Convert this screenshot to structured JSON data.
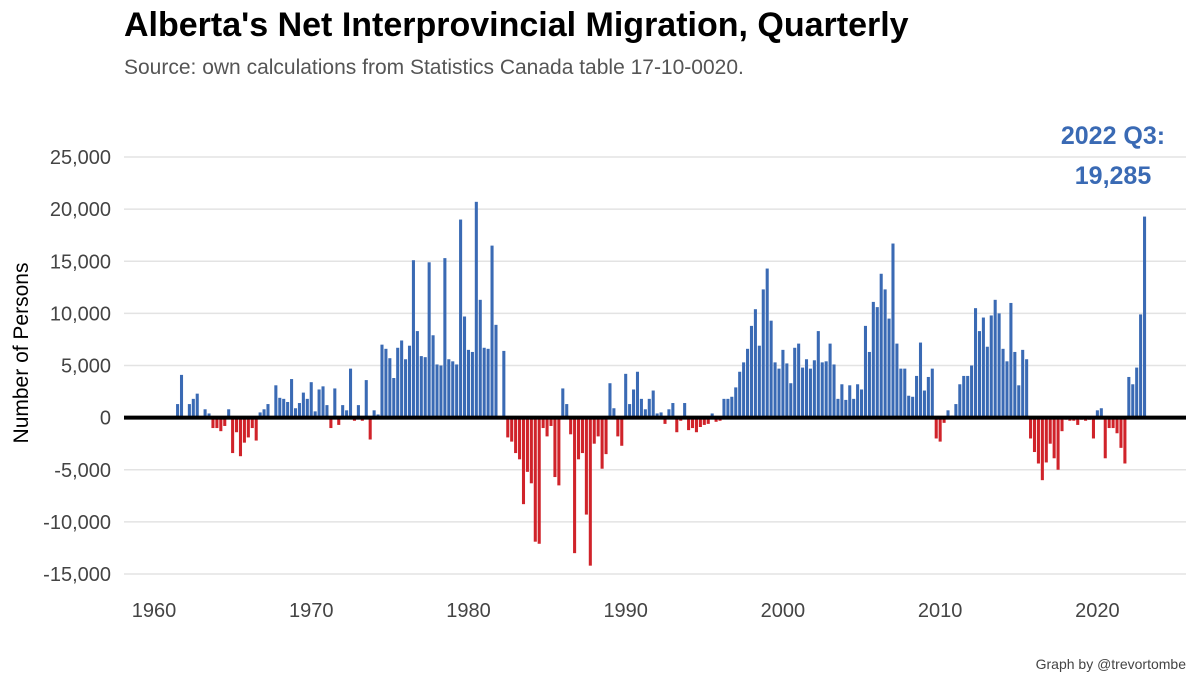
{
  "title": "Alberta's Net Interprovincial Migration, Quarterly",
  "subtitle": "Source: own calculations from Statistics Canada table 17-10-0020.",
  "caption": "Graph by @trevortombe",
  "chart_data": {
    "type": "bar",
    "title": "Alberta's Net Interprovincial Migration, Quarterly",
    "xlabel": "",
    "ylabel": "Number of Persons",
    "xlim": [
      1960,
      2025
    ],
    "ylim": [
      -15000,
      25000
    ],
    "xticks": [
      1960,
      1970,
      1980,
      1990,
      2000,
      2010,
      2020
    ],
    "yticks": [
      -15000,
      -10000,
      -5000,
      0,
      5000,
      10000,
      15000,
      20000,
      25000
    ],
    "ytick_labels": [
      "-15,000",
      "-10,000",
      "-5,000",
      "0",
      "5,000",
      "10,000",
      "15,000",
      "20,000",
      "25,000"
    ],
    "positive_color": "#3a6ab4",
    "negative_color": "#d0232a",
    "grid": "horizontal",
    "start": "1961 Q3",
    "annotation": {
      "line1": "2022 Q3:",
      "line2": "19,285",
      "color": "#3a6ab4"
    },
    "values": [
      1300,
      4100,
      0,
      1300,
      1800,
      2300,
      0,
      800,
      400,
      -1000,
      -1000,
      -1300,
      -800,
      800,
      -3400,
      -1400,
      -3700,
      -2400,
      -1900,
      -1000,
      -2200,
      500,
      800,
      1300,
      0,
      3100,
      1900,
      1800,
      1500,
      3700,
      900,
      1400,
      2400,
      1800,
      3400,
      600,
      2700,
      3000,
      1200,
      -1000,
      2800,
      -700,
      1200,
      700,
      4700,
      -300,
      1200,
      -300,
      3600,
      -2100,
      700,
      300,
      7000,
      6600,
      5700,
      3800,
      6700,
      7400,
      5600,
      6900,
      15100,
      8300,
      5900,
      5800,
      14900,
      7900,
      5100,
      5000,
      15300,
      5600,
      5400,
      5100,
      19000,
      9700,
      6500,
      6300,
      20700,
      11300,
      6700,
      6600,
      16500,
      8900,
      0,
      6400,
      -1900,
      -2300,
      -3400,
      -4000,
      -8300,
      -5200,
      -6300,
      -11900,
      -12100,
      -1000,
      -1800,
      -800,
      -5700,
      -6500,
      2800,
      1300,
      -1600,
      -13000,
      -4000,
      -3400,
      -9300,
      -14200,
      -2500,
      -1800,
      -4900,
      -3500,
      3300,
      900,
      -1800,
      -2700,
      4200,
      1300,
      2700,
      4400,
      1800,
      800,
      1800,
      2600,
      400,
      500,
      -600,
      800,
      1400,
      -1400,
      -300,
      1400,
      -1200,
      -1000,
      -1400,
      -900,
      -700,
      -600,
      400,
      -400,
      -300,
      1800,
      1800,
      2000,
      2900,
      4400,
      5300,
      6600,
      8800,
      10400,
      6900,
      12300,
      14300,
      9300,
      5300,
      4700,
      6500,
      5200,
      3300,
      6700,
      7100,
      4800,
      5600,
      4700,
      5500,
      8300,
      5300,
      5400,
      7100,
      5100,
      1800,
      3200,
      1700,
      3100,
      1800,
      3200,
      2700,
      8800,
      6300,
      11100,
      10600,
      13800,
      12300,
      9500,
      16700,
      7100,
      4700,
      4700,
      2100,
      2000,
      4000,
      7200,
      2600,
      3900,
      4700,
      -2000,
      -2300,
      -500,
      700,
      200,
      1300,
      3200,
      4000,
      4000,
      5000,
      10500,
      8300,
      9600,
      6800,
      9800,
      11300,
      10000,
      6600,
      5400,
      11000,
      6300,
      3100,
      6500,
      5600,
      -2000,
      -3300,
      -4400,
      -6000,
      -4300,
      -2500,
      -3900,
      -5000,
      -1300,
      -200,
      -300,
      -300,
      -700,
      -200,
      -300,
      -200,
      -2000,
      700,
      900,
      -3900,
      -1000,
      -1000,
      -1500,
      -2900,
      -4400,
      3900,
      3200,
      4800,
      9900,
      19285
    ]
  }
}
